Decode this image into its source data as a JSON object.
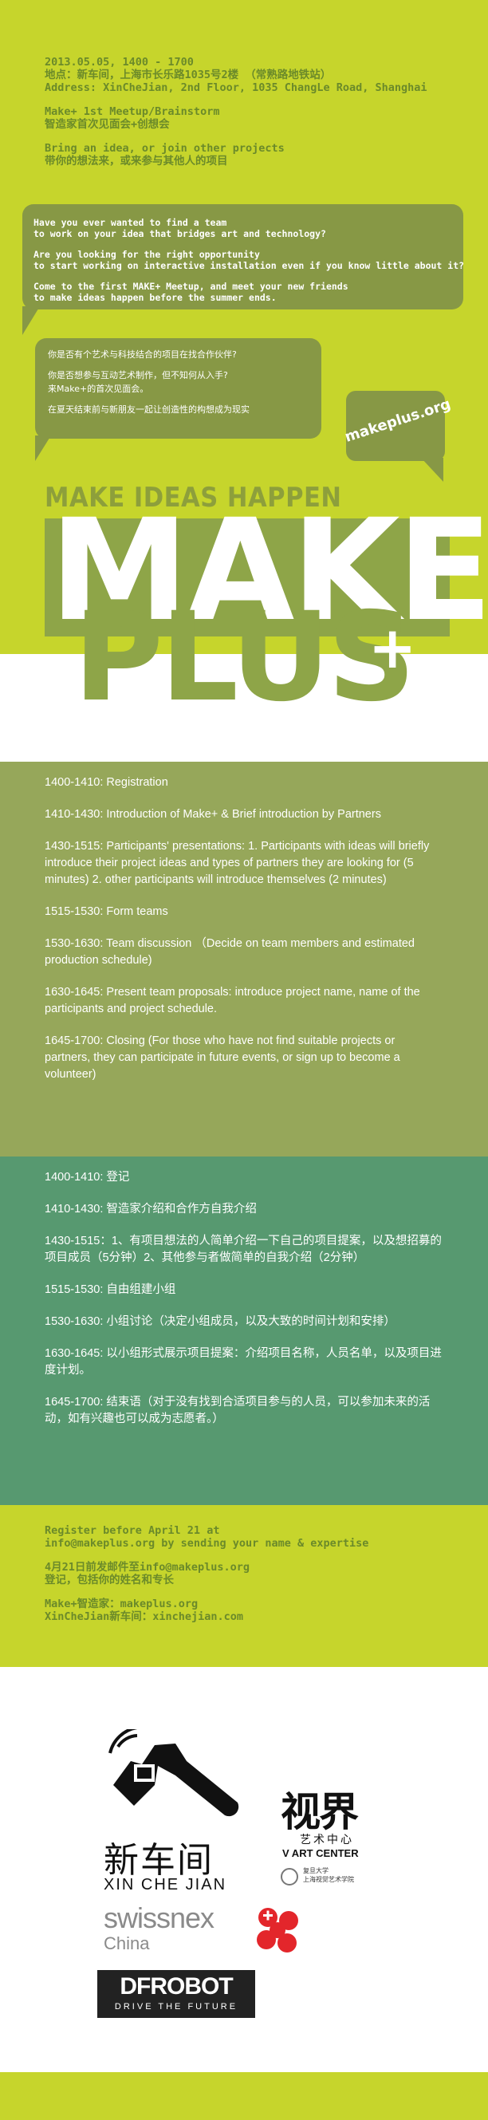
{
  "header": {
    "date_time": "2013.05.05, 1400 - 1700",
    "location_cn": "地点：新车间，上海市长乐路1035号2楼 （常熟路地铁站）",
    "address_en": "Address: XinCheJian, 2nd Floor, 1035 ChangLe Road, Shanghai",
    "event_en": "Make+ 1st Meetup/Brainstorm",
    "event_cn": "智造家首次见面会+创想会",
    "bring_en": "Bring an idea, or join other projects",
    "bring_cn": "带你的想法来，或来参与其他人的项目"
  },
  "bubble_en": {
    "line1": "Have you ever wanted to find a team",
    "line2": "to work on your idea that bridges art and technology?",
    "line3": "Are you looking for the right opportunity",
    "line4": "to start working on interactive installation even if you know little about it?",
    "line5": "Come to the first MAKE+ Meetup, and meet your new friends",
    "line6": "to make ideas happen before the summer ends."
  },
  "bubble_cn": {
    "line1": "你是否有个艺术与科技结合的项目在找合作伙伴?",
    "line2": "你是否想参与互动艺术制作，但不知何从入手?",
    "line3": "来Make+的首次见面会。",
    "line4": "在夏天结束前与新朋友一起让创造性的构想成为现实"
  },
  "site_badge": "makeplus.org",
  "tagline": "MAKE IDEAS HAPPEN",
  "logo_make": "MAKE",
  "logo_plus": "PLUS",
  "logo_plus_sign": "+",
  "schedule_en": [
    "1400-1410:   Registration",
    "1410-1430:   Introduction of Make+  & Brief introduction by Partners",
    "1430-1515:    Participants' presentations: 1. Participants with ideas will briefly introduce their project ideas and types of partners they are looking for (5 minutes) 2. other participants will introduce themselves (2 minutes)",
    "1515-1530:   Form teams",
    "1530-1630:   Team discussion  （Decide on team members and estimated production schedule)",
    "1630-1645:   Present team proposals: introduce project name, name of the participants and project schedule.",
    "1645-1700:   Closing (For those who have not find suitable projects or partners, they can participate in future events, or sign up to become a volunteer)"
  ],
  "schedule_cn": [
    "1400-1410: 登记",
    "1410-1430: 智造家介绍和合作方自我介绍",
    "1430-1515：1、有项目想法的人简单介绍一下自己的项目提案，以及想招募的项目成员（5分钟）2、其他参与者做简单的自我介绍（2分钟）",
    "1515-1530: 自由组建小组",
    "1530-1630: 小组讨论（决定小组成员，以及大致的时间计划和安排）",
    "1630-1645: 以小组形式展示项目提案：介绍项目名称，人员名单，以及项目进度计划。",
    "1645-1700: 结束语（对于没有找到合适项目参与的人员，可以参加未来的活动，如有兴趣也可以成为志愿者。）"
  ],
  "register": {
    "line1": "Register before April 21 at",
    "line2": "info@makeplus.org by sending your name & expertise",
    "line3": "4月21日前发邮件至info@makeplus.org",
    "line4": "登记，包括你的姓名和专长",
    "line5": "Make+智造家：makeplus.org",
    "line6": "XinCheJian新车间：xinchejian.com"
  },
  "sponsors": {
    "xinchejian_cn": "新车间",
    "xinchejian_en": "XIN CHE JIAN",
    "vart_cn_main": "视界",
    "vart_cn_sub": "艺术中心",
    "vart_en": "V ART CENTER",
    "fudan_line1": "复旦大学",
    "fudan_line2": "上海视觉艺术学院",
    "swissnex": "swissnex",
    "swissnex_sub": "China",
    "dfrobot": "DFROBOT",
    "dfrobot_sub": "DRIVE THE FUTURE"
  },
  "colors": {
    "lime": "#c6d52c",
    "olive": "#879845",
    "olive_light": "#96a75a",
    "teal": "#579970",
    "text_green": "#6b8a2a",
    "swissnex_red": "#e3262b"
  }
}
